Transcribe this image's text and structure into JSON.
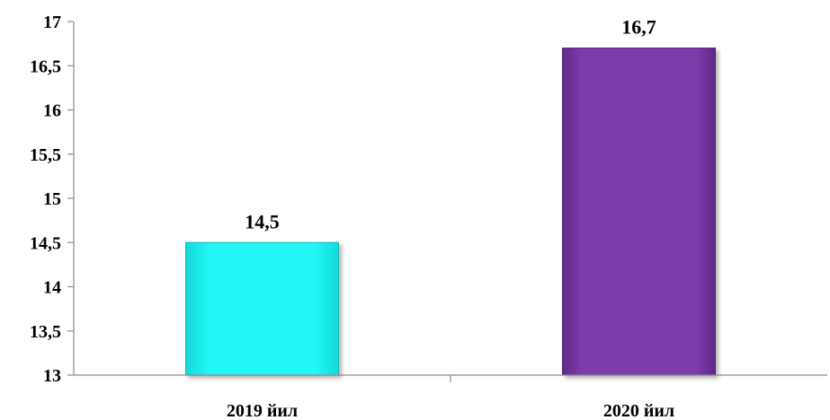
{
  "chart_data": {
    "type": "bar",
    "title": "",
    "xlabel": "",
    "ylabel": "",
    "categories": [
      "2019 йил",
      "2020 йил"
    ],
    "values": [
      14.5,
      16.7
    ],
    "value_labels": [
      "14,5",
      "16,7"
    ],
    "ylim": [
      13,
      17
    ],
    "y_ticks": [
      13,
      13.5,
      14,
      14.5,
      15,
      15.5,
      16,
      16.5,
      17
    ],
    "y_tick_labels": [
      "13",
      "13,5",
      "14",
      "14,5",
      "15",
      "15,5",
      "16",
      "16,5",
      "17"
    ],
    "bar_colors": [
      "#1ff0f0",
      "#7b3aa8"
    ],
    "bar_edge_colors": [
      "#17b8b8",
      "#55237a"
    ],
    "grid": false,
    "legend": "none"
  }
}
